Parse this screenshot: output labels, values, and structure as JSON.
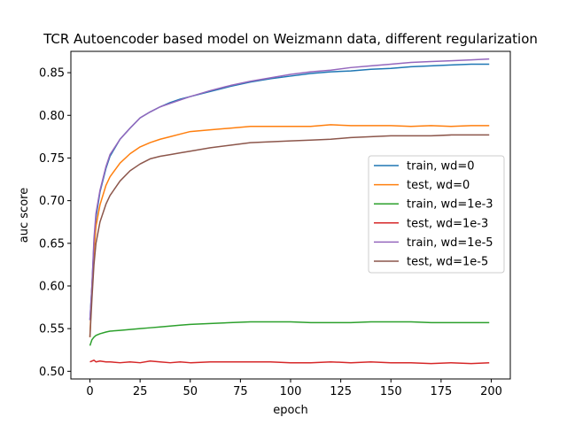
{
  "chart_data": {
    "type": "line",
    "title": "TCR Autoencoder based model on Weizmann data, different regularization",
    "xlabel": "epoch",
    "ylabel": "auc score",
    "xlim": [
      -9.5,
      209.5
    ],
    "ylim": [
      0.491,
      0.875
    ],
    "xticks": [
      0,
      25,
      50,
      75,
      100,
      125,
      150,
      175,
      200
    ],
    "yticks": [
      0.5,
      0.55,
      0.6,
      0.65,
      0.7,
      0.75,
      0.8,
      0.85
    ],
    "ytick_labels": [
      "0.50",
      "0.55",
      "0.60",
      "0.65",
      "0.70",
      "0.75",
      "0.80",
      "0.85"
    ],
    "grid": false,
    "legend_position": "center-right",
    "x": [
      0,
      1,
      2,
      3,
      5,
      8,
      10,
      15,
      20,
      25,
      30,
      35,
      40,
      45,
      50,
      60,
      70,
      80,
      90,
      100,
      110,
      120,
      130,
      140,
      150,
      160,
      170,
      180,
      190,
      199
    ],
    "series": [
      {
        "name": "train, wd=0",
        "color": "#1f77b4",
        "values": [
          0.56,
          0.6,
          0.65,
          0.68,
          0.71,
          0.738,
          0.752,
          0.772,
          0.785,
          0.797,
          0.804,
          0.81,
          0.815,
          0.819,
          0.822,
          0.828,
          0.834,
          0.839,
          0.843,
          0.846,
          0.849,
          0.851,
          0.852,
          0.854,
          0.855,
          0.857,
          0.858,
          0.859,
          0.86,
          0.86
        ]
      },
      {
        "name": "test, wd=0",
        "color": "#ff7f0e",
        "values": [
          0.54,
          0.6,
          0.64,
          0.67,
          0.695,
          0.718,
          0.728,
          0.744,
          0.755,
          0.763,
          0.768,
          0.772,
          0.775,
          0.778,
          0.781,
          0.783,
          0.785,
          0.787,
          0.787,
          0.787,
          0.787,
          0.789,
          0.788,
          0.788,
          0.788,
          0.787,
          0.788,
          0.787,
          0.788,
          0.788
        ]
      },
      {
        "name": "train, wd=1e-3",
        "color": "#2ca02c",
        "values": [
          0.53,
          0.537,
          0.54,
          0.542,
          0.544,
          0.546,
          0.547,
          0.548,
          0.549,
          0.55,
          0.551,
          0.552,
          0.553,
          0.554,
          0.555,
          0.556,
          0.557,
          0.558,
          0.558,
          0.558,
          0.557,
          0.557,
          0.557,
          0.558,
          0.558,
          0.558,
          0.557,
          0.557,
          0.557,
          0.557
        ]
      },
      {
        "name": "test, wd=1e-3",
        "color": "#d62728",
        "values": [
          0.511,
          0.512,
          0.513,
          0.511,
          0.512,
          0.511,
          0.511,
          0.51,
          0.511,
          0.51,
          0.512,
          0.511,
          0.51,
          0.511,
          0.51,
          0.511,
          0.511,
          0.511,
          0.511,
          0.51,
          0.51,
          0.511,
          0.51,
          0.511,
          0.51,
          0.51,
          0.509,
          0.51,
          0.509,
          0.51
        ]
      },
      {
        "name": "train, wd=1e-5",
        "color": "#9467bd",
        "values": [
          0.56,
          0.6,
          0.655,
          0.685,
          0.712,
          0.74,
          0.754,
          0.772,
          0.785,
          0.797,
          0.804,
          0.81,
          0.814,
          0.818,
          0.822,
          0.829,
          0.835,
          0.84,
          0.844,
          0.848,
          0.851,
          0.853,
          0.856,
          0.858,
          0.86,
          0.862,
          0.863,
          0.864,
          0.865,
          0.866
        ]
      },
      {
        "name": "test, wd=1e-5",
        "color": "#8c564b",
        "values": [
          0.54,
          0.585,
          0.625,
          0.65,
          0.675,
          0.696,
          0.706,
          0.723,
          0.735,
          0.743,
          0.749,
          0.752,
          0.754,
          0.756,
          0.758,
          0.762,
          0.765,
          0.768,
          0.769,
          0.77,
          0.771,
          0.772,
          0.774,
          0.775,
          0.776,
          0.776,
          0.776,
          0.777,
          0.777,
          0.777
        ]
      }
    ]
  }
}
